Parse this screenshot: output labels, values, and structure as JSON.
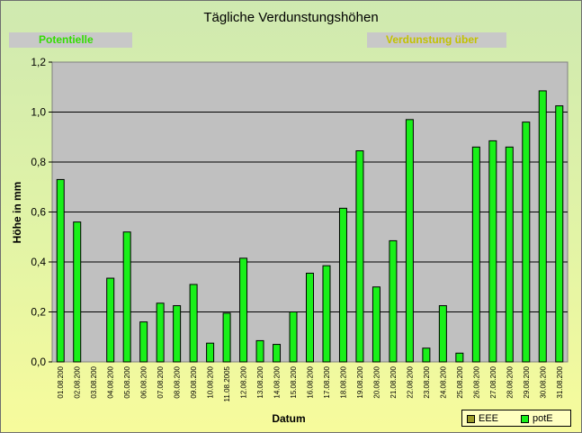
{
  "chart_title": "Tägliche Verdunstungshöhen",
  "banners": {
    "left": "Potentielle",
    "right": "Verdunstung über"
  },
  "chart_data": {
    "type": "bar",
    "title": "Tägliche Verdunstungshöhen",
    "xlabel": "Datum",
    "ylabel": "Höhe in mm",
    "ylim": [
      0,
      1.2
    ],
    "yticks": [
      "0,0",
      "0,2",
      "0,4",
      "0,6",
      "0,8",
      "1,0",
      "1,2"
    ],
    "grid": true,
    "legend_position": "bottom-right",
    "categories": [
      "01.08.200",
      "02.08.200",
      "03.08.200",
      "04.08.200",
      "05.08.200",
      "06.08.200",
      "07.08.200",
      "08.08.200",
      "09.08.200",
      "10.08.200",
      "11.08.2005",
      "12.08.200",
      "13.08.200",
      "14.08.200",
      "15.08.200",
      "16.08.200",
      "17.08.200",
      "18.08.200",
      "19.08.200",
      "20.08.200",
      "21.08.200",
      "22.08.200",
      "23.08.200",
      "24.08.200",
      "25.08.200",
      "26.08.200",
      "27.08.200",
      "28.08.200",
      "29.08.200",
      "30.08.200",
      "31.08.200"
    ],
    "series": [
      {
        "name": "EEE",
        "color": "#9c9c2a",
        "values": [
          null,
          null,
          null,
          null,
          null,
          null,
          null,
          null,
          null,
          null,
          null,
          null,
          null,
          null,
          null,
          null,
          null,
          null,
          null,
          null,
          null,
          null,
          null,
          null,
          null,
          null,
          null,
          null,
          null,
          null,
          null
        ]
      },
      {
        "name": "potE",
        "color": "#19f019",
        "values": [
          0.73,
          0.56,
          0.0,
          0.335,
          0.52,
          0.16,
          0.235,
          0.225,
          0.31,
          0.075,
          0.195,
          0.415,
          0.085,
          0.07,
          0.2,
          0.355,
          0.385,
          0.615,
          0.845,
          0.3,
          0.485,
          0.97,
          0.055,
          0.225,
          0.035,
          0.86,
          0.885,
          0.86,
          0.96,
          1.085,
          1.025
        ]
      }
    ]
  },
  "legend": {
    "items": [
      "EEE",
      "potE"
    ]
  }
}
